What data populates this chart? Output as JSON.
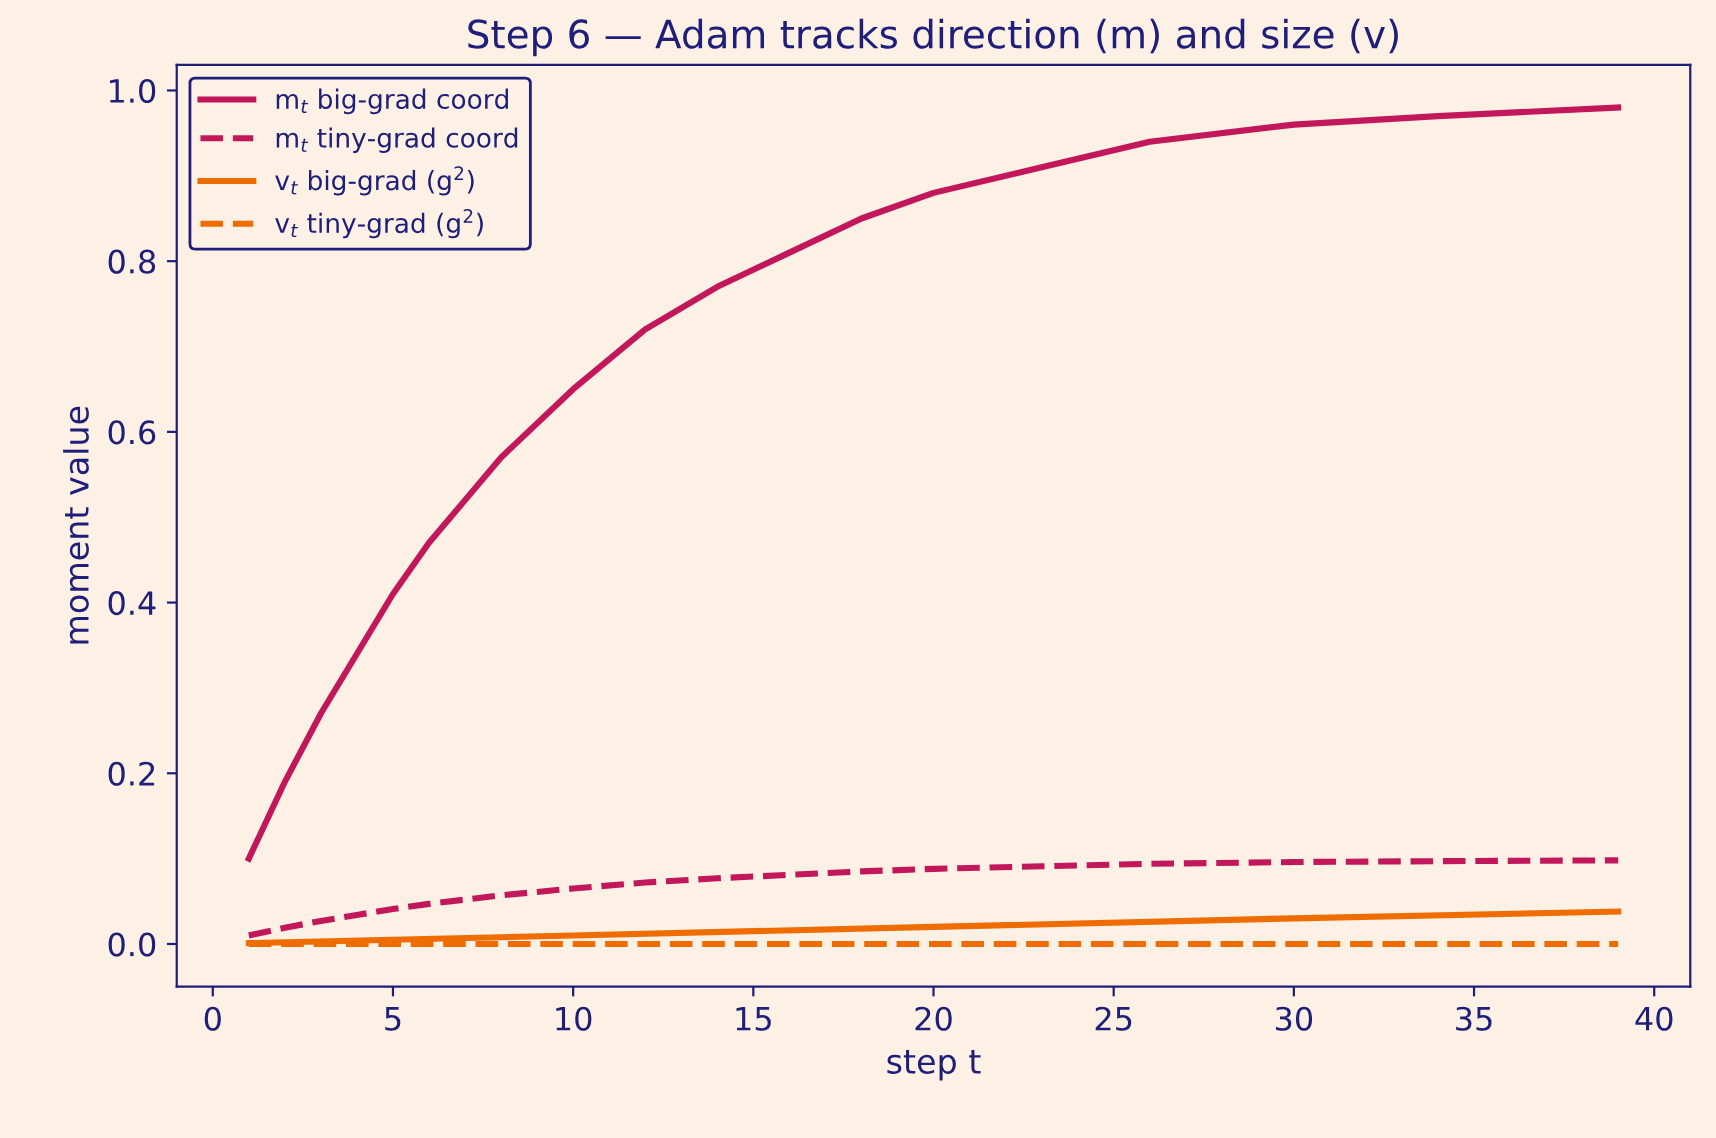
{
  "chart_data": {
    "type": "line",
    "title": "Step 6 — Adam tracks direction (m) and size (v)",
    "xlabel": "step t",
    "ylabel": "moment value",
    "x": [
      1,
      2,
      3,
      4,
      5,
      6,
      7,
      8,
      10,
      12,
      14,
      16,
      18,
      20,
      23,
      26,
      30,
      34,
      39
    ],
    "series": [
      {
        "name": "m$_{t}$ big-grad coord",
        "color": "#c2185b",
        "line_style": "solid",
        "values": [
          0.1,
          0.19,
          0.27,
          0.34,
          0.41,
          0.47,
          0.52,
          0.57,
          0.65,
          0.72,
          0.77,
          0.81,
          0.85,
          0.88,
          0.91,
          0.94,
          0.96,
          0.97,
          0.98
        ]
      },
      {
        "name": "m$_{t}$ tiny-grad coord",
        "color": "#c2185b",
        "line_style": "dashed",
        "values": [
          0.01,
          0.019,
          0.027,
          0.034,
          0.041,
          0.047,
          0.052,
          0.057,
          0.065,
          0.072,
          0.077,
          0.081,
          0.085,
          0.088,
          0.091,
          0.094,
          0.096,
          0.097,
          0.098
        ]
      },
      {
        "name": "v$_{t}$ big-grad (g$^{2}$)",
        "color": "#ef6c00",
        "line_style": "solid",
        "x": [
          1,
          10,
          20,
          30,
          39
        ],
        "values": [
          0.001,
          0.01,
          0.02,
          0.03,
          0.038
        ]
      },
      {
        "name": "v$_{t}$ tiny-grad (g$^{2}$)",
        "color": "#ef6c00",
        "line_style": "dashed",
        "x": [
          1,
          39
        ],
        "values": [
          0.0,
          0.0
        ]
      }
    ],
    "xlim": [
      -1,
      41
    ],
    "xticks": [
      0,
      5,
      10,
      15,
      20,
      25,
      30,
      35,
      40
    ],
    "ylim": [
      -0.05,
      1.03
    ],
    "yticks": [
      {
        "value": 0,
        "label": "0.0"
      },
      0.2,
      0.4,
      0.6,
      0.8,
      {
        "value": 1,
        "label": "1.0"
      }
    ],
    "grid": false,
    "legend": "top left",
    "marker": "none"
  }
}
